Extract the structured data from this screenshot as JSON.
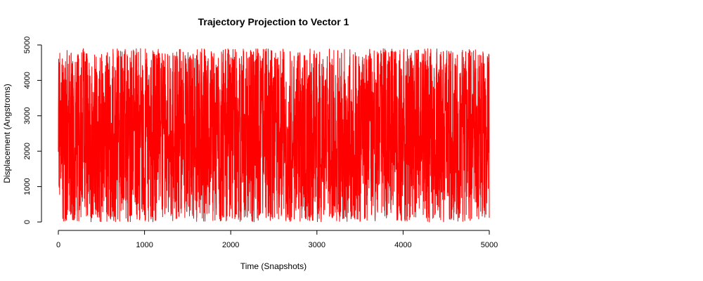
{
  "chart_data": {
    "type": "line",
    "title": "Trajectory Projection to Vector 1",
    "xlabel": "Time (Snapshots)",
    "ylabel": "Displacement (Angstroms)",
    "xlim": [
      0,
      5000
    ],
    "ylim": [
      0,
      5000
    ],
    "x_ticks": [
      0,
      1000,
      2000,
      3000,
      4000,
      5000
    ],
    "y_ticks": [
      0,
      1000,
      2000,
      3000,
      4000,
      5000
    ],
    "grid": false,
    "legend": "none",
    "series": [
      {
        "color": "#ff0000",
        "x_start": 0,
        "x_end": 5000,
        "n_points": 5000,
        "y_min": 0,
        "y_max": 4900,
        "y_mean": 2450
      }
    ]
  }
}
